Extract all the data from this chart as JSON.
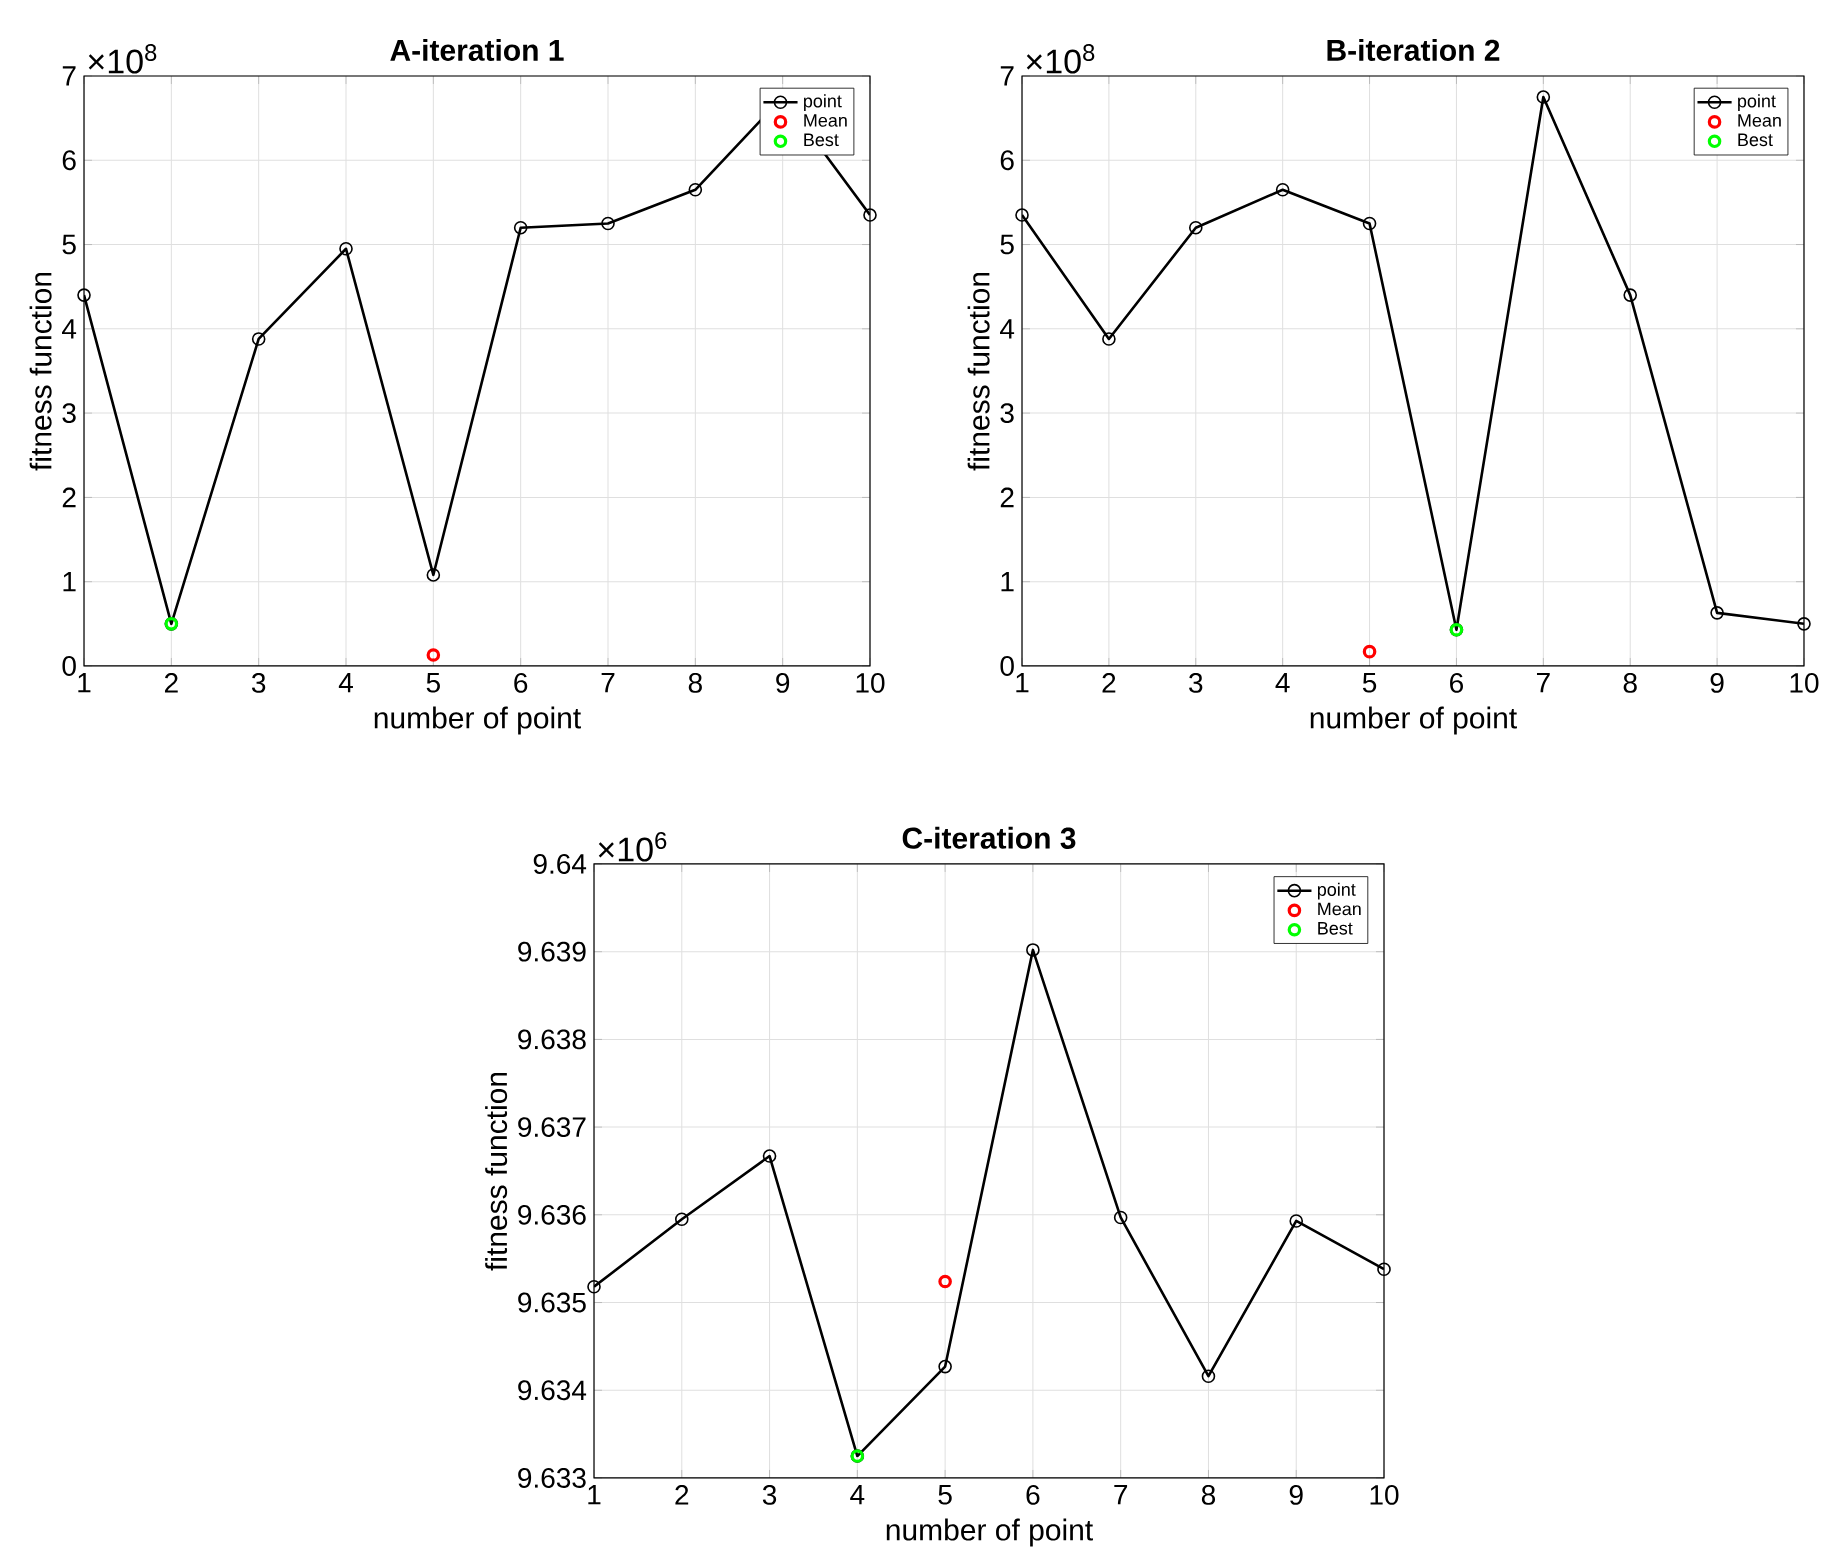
{
  "chart_data": [
    {
      "type": "line",
      "title": "A-iteration 1",
      "xlabel": "number of point",
      "ylabel": "fitness function",
      "annotations": [
        "×10$^{8}$"
      ],
      "xlim": [
        1,
        10
      ],
      "xticks": [
        1,
        2,
        3,
        4,
        5,
        6,
        7,
        8,
        9,
        10
      ],
      "ylim": [
        0,
        7
      ],
      "yticks": [
        0,
        1,
        2,
        3,
        4,
        5,
        6,
        7
      ],
      "grid": true,
      "legend": "top right",
      "marker": "circle",
      "line_style": "solid",
      "series": [
        {
          "name": "point",
          "color": "#000000",
          "x": [
            1,
            2,
            3,
            4,
            5,
            6,
            7,
            8,
            9,
            10
          ],
          "values": [
            4.4,
            0.5,
            3.88,
            4.95,
            1.08,
            5.2,
            5.25,
            5.65,
            6.75,
            5.35
          ]
        },
        {
          "name": "Mean",
          "type": "scatter",
          "color": "#ff0000",
          "x": [
            5
          ],
          "values": [
            0.13
          ]
        },
        {
          "name": "Best",
          "type": "scatter",
          "color": "#00ff00",
          "x": [
            2
          ],
          "values": [
            0.5
          ]
        }
      ]
    },
    {
      "type": "line",
      "title": "B-iteration 2",
      "xlabel": "number of point",
      "ylabel": "fitness function",
      "annotations": [
        "×10$^{8}$"
      ],
      "xlim": [
        1,
        10
      ],
      "xticks": [
        1,
        2,
        3,
        4,
        5,
        6,
        7,
        8,
        9,
        10
      ],
      "ylim": [
        0,
        7
      ],
      "yticks": [
        0,
        1,
        2,
        3,
        4,
        5,
        6,
        7
      ],
      "grid": true,
      "legend": "top right",
      "marker": "circle",
      "line_style": "solid",
      "series": [
        {
          "name": "point",
          "color": "#000000",
          "x": [
            1,
            2,
            3,
            4,
            5,
            6,
            7,
            8,
            9,
            10
          ],
          "values": [
            5.35,
            3.88,
            5.2,
            5.65,
            5.25,
            0.43,
            6.75,
            4.4,
            0.63,
            0.5
          ]
        },
        {
          "name": "Mean",
          "type": "scatter",
          "color": "#ff0000",
          "x": [
            5
          ],
          "values": [
            0.17
          ]
        },
        {
          "name": "Best",
          "type": "scatter",
          "color": "#00ff00",
          "x": [
            6
          ],
          "values": [
            0.43
          ]
        }
      ]
    },
    {
      "type": "line",
      "title": "C-iteration 3",
      "xlabel": "number of point",
      "ylabel": "fitness function",
      "annotations": [
        "×10$^{6}$"
      ],
      "xlim": [
        1,
        10
      ],
      "xticks": [
        1,
        2,
        3,
        4,
        5,
        6,
        7,
        8,
        9,
        10
      ],
      "ylim": [
        9.633,
        9.64
      ],
      "yticks": [
        9.633,
        9.634,
        9.635,
        9.636,
        9.637,
        9.638,
        9.639,
        9.64
      ],
      "grid": true,
      "legend": "top right",
      "marker": "circle",
      "line_style": "solid",
      "series": [
        {
          "name": "point",
          "color": "#000000",
          "x": [
            1,
            2,
            3,
            4,
            5,
            6,
            7,
            8,
            9,
            10
          ],
          "values": [
            9.63518,
            9.63595,
            9.63667,
            9.63325,
            9.63427,
            9.63902,
            9.63597,
            9.63416,
            9.63593,
            9.63538
          ]
        },
        {
          "name": "Mean",
          "type": "scatter",
          "color": "#ff0000",
          "x": [
            5
          ],
          "values": [
            9.63524
          ]
        },
        {
          "name": "Best",
          "type": "scatter",
          "color": "#00ff00",
          "x": [
            4
          ],
          "values": [
            9.63325
          ]
        }
      ]
    }
  ]
}
